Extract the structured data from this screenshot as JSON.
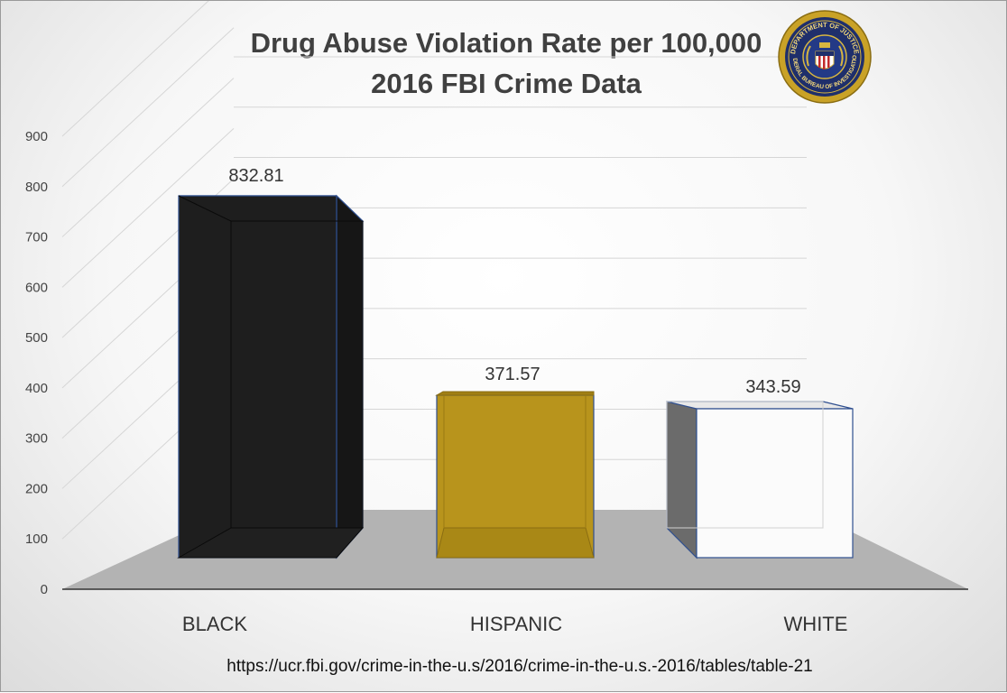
{
  "title_line1": "Drug Abuse Violation Rate per 100,000",
  "title_line2": "2016 FBI Crime Data",
  "source_text": "https://ucr.fbi.gov/crime-in-the-u.s/2016/crime-in-the-u.s.-2016/tables/table-21",
  "logo": {
    "icon": "fbi-seal-icon",
    "text_top": "DEPARTMENT OF JUSTICE",
    "text_bottom": "FEDERAL BUREAU OF INVESTIGATION"
  },
  "colors": {
    "black_bar": "#1e1e1e",
    "hispanic_bar": "#b8941c",
    "white_bar": "#fbfbfb",
    "bar_edge": "#2f4f8f",
    "floor": "#b3b3b3"
  },
  "chart_data": {
    "type": "bar",
    "style": "3d",
    "categories": [
      "BLACK",
      "HISPANIC",
      "WHITE"
    ],
    "values": [
      832.81,
      371.57,
      343.59
    ],
    "data_labels": [
      "832.81",
      "371.57",
      "343.59"
    ],
    "ylim": [
      0,
      900
    ],
    "yticks": [
      "0",
      "100",
      "200",
      "300",
      "400",
      "500",
      "600",
      "700",
      "800",
      "900"
    ],
    "grid": true
  }
}
